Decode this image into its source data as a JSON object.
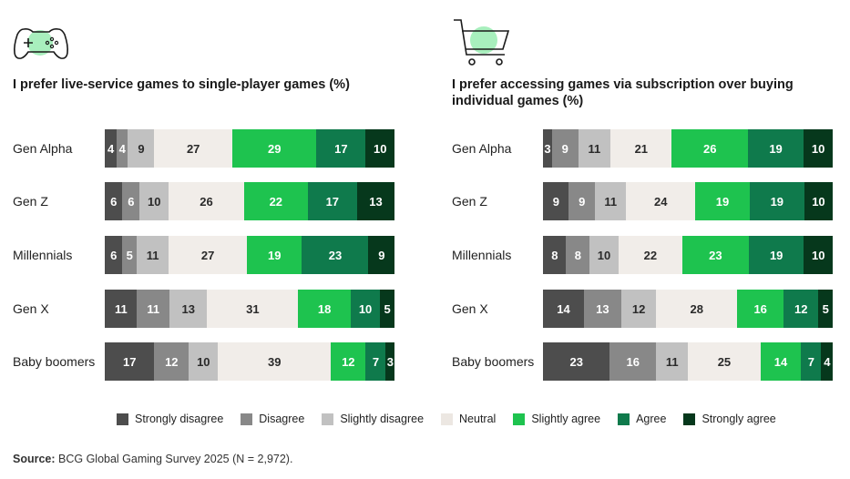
{
  "colors": {
    "strongly_disagree": "#4d4d4d",
    "disagree": "#888888",
    "slightly_disagree": "#c1c1c1",
    "neutral": "#f1ede9",
    "slightly_agree": "#1ec34f",
    "agree": "#0f7a4c",
    "strongly_agree": "#06381c"
  },
  "legend": [
    "Strongly disagree",
    "Disagree",
    "Slightly disagree",
    "Neutral",
    "Slightly agree",
    "Agree",
    "Strongly agree"
  ],
  "source": {
    "label": "Source:",
    "text": " BCG Global Gaming Survey 2025 (N = 2,972)."
  },
  "chart_data": [
    {
      "type": "bar",
      "orientation": "horizontal-stacked-100",
      "icon": "game-controller-icon",
      "title": "I prefer live-service games to single-player games (%)",
      "categories": [
        "Gen Alpha",
        "Gen Z",
        "Millennials",
        "Gen X",
        "Baby boomers"
      ],
      "series": [
        {
          "name": "Strongly disagree",
          "values": [
            4,
            6,
            6,
            11,
            17
          ]
        },
        {
          "name": "Disagree",
          "values": [
            4,
            6,
            5,
            11,
            12
          ]
        },
        {
          "name": "Slightly disagree",
          "values": [
            9,
            10,
            11,
            13,
            10
          ]
        },
        {
          "name": "Neutral",
          "values": [
            27,
            26,
            27,
            31,
            39
          ]
        },
        {
          "name": "Slightly agree",
          "values": [
            29,
            22,
            19,
            18,
            12
          ]
        },
        {
          "name": "Agree",
          "values": [
            17,
            17,
            23,
            10,
            7
          ]
        },
        {
          "name": "Strongly agree",
          "values": [
            10,
            13,
            9,
            5,
            3
          ]
        }
      ]
    },
    {
      "type": "bar",
      "orientation": "horizontal-stacked-100",
      "icon": "shopping-cart-icon",
      "title": "I prefer accessing games via subscription over buying individual games (%)",
      "categories": [
        "Gen Alpha",
        "Gen Z",
        "Millennials",
        "Gen X",
        "Baby boomers"
      ],
      "series": [
        {
          "name": "Strongly disagree",
          "values": [
            3,
            9,
            8,
            14,
            23
          ]
        },
        {
          "name": "Disagree",
          "values": [
            9,
            9,
            8,
            13,
            16
          ]
        },
        {
          "name": "Slightly disagree",
          "values": [
            11,
            11,
            10,
            12,
            11
          ]
        },
        {
          "name": "Neutral",
          "values": [
            21,
            24,
            22,
            28,
            25
          ]
        },
        {
          "name": "Slightly agree",
          "values": [
            26,
            19,
            23,
            16,
            14
          ]
        },
        {
          "name": "Agree",
          "values": [
            19,
            19,
            19,
            12,
            7
          ]
        },
        {
          "name": "Strongly agree",
          "values": [
            10,
            10,
            10,
            5,
            4
          ]
        }
      ]
    }
  ]
}
